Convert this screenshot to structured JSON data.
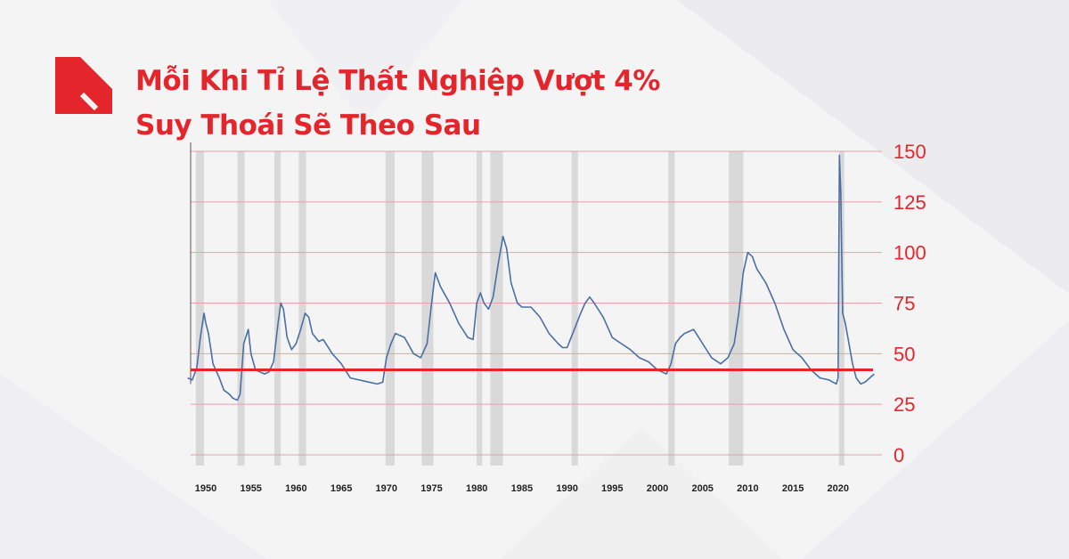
{
  "title_line1": "Mỗi Khi Tỉ Lệ Thất Nghiệp Vượt 4%",
  "title_line2": "Suy Thoái Sẽ Theo Sau",
  "colors": {
    "accent": "#e4252b",
    "series": "#4a6fa5",
    "recession": "#d3d3d3",
    "background": "#f4f4f5"
  },
  "icons": {
    "logo": "brand-logo-icon"
  },
  "chart_data": {
    "type": "line",
    "title": "Mỗi Khi Tỉ Lệ Thất Nghiệp Vượt 4% Suy Thoái Sẽ Theo Sau",
    "xlabel": "",
    "ylabel": "",
    "xlim": [
      1948,
      2024
    ],
    "ylim": [
      0,
      150
    ],
    "y_ticks": [
      0,
      25,
      50,
      75,
      100,
      125,
      150
    ],
    "x_ticks": [
      1950,
      1955,
      1960,
      1965,
      1970,
      1975,
      1980,
      1985,
      1990,
      1995,
      2000,
      2005,
      2010,
      2015,
      2020
    ],
    "y_axis_position": "right",
    "grid": "horizontal",
    "threshold_line": 42,
    "recessions": [
      [
        1948.9,
        1949.8
      ],
      [
        1953.5,
        1954.3
      ],
      [
        1957.6,
        1958.3
      ],
      [
        1960.3,
        1961.1
      ],
      [
        1969.9,
        1970.9
      ],
      [
        1973.9,
        1975.2
      ],
      [
        1980.0,
        1980.5
      ],
      [
        1981.5,
        1982.9
      ],
      [
        1990.5,
        1991.2
      ],
      [
        2001.2,
        2001.9
      ],
      [
        2007.9,
        2009.5
      ],
      [
        2020.1,
        2020.4
      ]
    ],
    "series": [
      {
        "x": [
          1948.0,
          1948.5,
          1949.0,
          1949.4,
          1949.8,
          1950.0,
          1950.3,
          1950.8,
          1951.5,
          1952.0,
          1952.6,
          1953.0,
          1953.5,
          1953.8,
          1954.2,
          1954.7,
          1955.0,
          1955.5,
          1956.0,
          1956.5,
          1957.0,
          1957.5,
          1958.0,
          1958.3,
          1958.6,
          1959.0,
          1959.5,
          1960.0,
          1960.5,
          1961.0,
          1961.4,
          1961.8,
          1962.5,
          1963.0,
          1964.0,
          1965.0,
          1966.0,
          1967.0,
          1968.0,
          1969.0,
          1969.6,
          1970.0,
          1970.5,
          1971.0,
          1972.0,
          1973.0,
          1973.8,
          1974.5,
          1975.0,
          1975.4,
          1976.0,
          1977.0,
          1978.0,
          1979.0,
          1979.6,
          1980.0,
          1980.4,
          1980.8,
          1981.3,
          1981.8,
          1982.4,
          1982.9,
          1983.3,
          1983.8,
          1984.5,
          1985.0,
          1986.0,
          1987.0,
          1988.0,
          1989.0,
          1989.5,
          1990.0,
          1990.8,
          1991.5,
          1992.0,
          1992.5,
          1993.0,
          1994.0,
          1995.0,
          1996.0,
          1997.0,
          1998.0,
          1999.0,
          2000.0,
          2000.5,
          2001.0,
          2001.5,
          2002.0,
          2002.5,
          2003.0,
          2004.0,
          2005.0,
          2006.0,
          2007.0,
          2007.8,
          2008.5,
          2009.0,
          2009.5,
          2010.0,
          2010.5,
          2011.0,
          2012.0,
          2013.0,
          2014.0,
          2015.0,
          2016.0,
          2017.0,
          2018.0,
          2019.0,
          2019.8,
          2020.0,
          2020.15,
          2020.3,
          2020.5,
          2020.8,
          2021.2,
          2021.6,
          2022.0,
          2022.5,
          2023.0,
          2023.5,
          2024.0
        ],
        "y": [
          38,
          37,
          43,
          58,
          70,
          65,
          60,
          45,
          38,
          32,
          30,
          28,
          27,
          30,
          55,
          62,
          50,
          42,
          41,
          40,
          41,
          46,
          65,
          75,
          72,
          58,
          52,
          55,
          62,
          70,
          68,
          60,
          56,
          57,
          50,
          45,
          38,
          37,
          36,
          35,
          36,
          48,
          55,
          60,
          58,
          50,
          48,
          55,
          75,
          90,
          83,
          75,
          65,
          58,
          57,
          75,
          80,
          75,
          72,
          78,
          95,
          108,
          102,
          85,
          75,
          73,
          73,
          68,
          60,
          55,
          53,
          53,
          62,
          70,
          75,
          78,
          75,
          68,
          58,
          55,
          52,
          48,
          46,
          42,
          41,
          40,
          45,
          55,
          58,
          60,
          62,
          55,
          48,
          45,
          48,
          55,
          70,
          90,
          100,
          98,
          92,
          85,
          75,
          62,
          52,
          48,
          42,
          38,
          37,
          35,
          38,
          148,
          130,
          70,
          65,
          55,
          45,
          38,
          35,
          36,
          38,
          40
        ]
      }
    ]
  }
}
